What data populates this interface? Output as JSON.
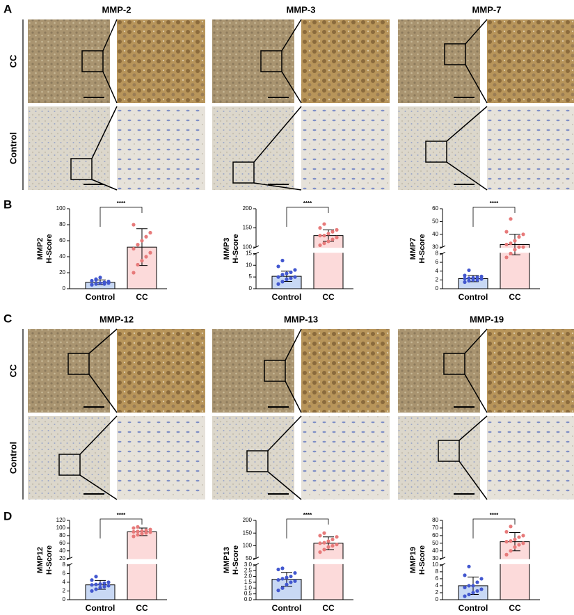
{
  "panels": [
    {
      "label": "A",
      "columns": [
        "MMP-2",
        "MMP-3",
        "MMP-7"
      ],
      "rows": [
        "CC",
        "Control"
      ]
    },
    {
      "label": "C",
      "columns": [
        "MMP-12",
        "MMP-13",
        "MMP-19"
      ],
      "rows": [
        "CC",
        "Control"
      ]
    }
  ],
  "chart_panel_labels": [
    "B",
    "D"
  ],
  "chart_data": [
    {
      "type": "bar",
      "ylabel": [
        "MMP2",
        "H-Score"
      ],
      "categories": [
        "Control",
        "CC"
      ],
      "significance": "****",
      "colors": [
        "#c8d8f4",
        "#fcdada"
      ],
      "point_colors": [
        "#4257cf",
        "#e77a7a"
      ],
      "values": [
        8,
        52
      ],
      "errors": [
        3,
        23
      ],
      "points": [
        [
          5,
          6,
          7,
          8,
          9,
          10,
          12,
          14,
          6,
          7,
          5,
          11
        ],
        [
          20,
          30,
          35,
          40,
          45,
          50,
          55,
          60,
          65,
          70,
          80,
          55
        ]
      ],
      "ylim": [
        0,
        100
      ],
      "yticks": [
        0,
        20,
        40,
        60,
        80,
        100
      ]
    },
    {
      "type": "bar",
      "ylabel": [
        "MMP3",
        "H-Score"
      ],
      "categories": [
        "Control",
        "CC"
      ],
      "significance": "****",
      "colors": [
        "#c8d8f4",
        "#fcdada"
      ],
      "point_colors": [
        "#4257cf",
        "#e77a7a"
      ],
      "values": [
        5.3,
        130
      ],
      "errors": [
        2.2,
        15
      ],
      "points": [
        [
          2,
          3,
          4,
          4.5,
          5,
          5,
          6,
          6.5,
          7,
          8,
          9.5,
          12
        ],
        [
          105,
          110,
          115,
          120,
          125,
          130,
          130,
          135,
          140,
          145,
          150,
          160
        ]
      ],
      "ylim_lower": [
        0,
        15
      ],
      "yticks_lower": [
        0,
        5,
        10,
        15
      ],
      "ylim_upper": [
        100,
        200
      ],
      "yticks_upper": [
        100,
        150,
        200
      ]
    },
    {
      "type": "bar",
      "ylabel": [
        "MMP7",
        "H-Score"
      ],
      "categories": [
        "Control",
        "CC"
      ],
      "significance": "****",
      "colors": [
        "#c8d8f4",
        "#fcdada"
      ],
      "point_colors": [
        "#4257cf",
        "#e77a7a"
      ],
      "values": [
        2.3,
        32
      ],
      "errors": [
        0.7,
        8
      ],
      "points": [
        [
          1.5,
          1.8,
          2,
          2,
          2.2,
          2.3,
          2.4,
          2.5,
          2.6,
          2.8,
          3,
          4.2
        ],
        [
          22,
          25,
          28,
          30,
          30,
          32,
          33,
          35,
          38,
          40,
          42,
          52
        ]
      ],
      "ylim_lower": [
        0,
        8
      ],
      "yticks_lower": [
        0,
        2,
        4,
        6,
        8
      ],
      "ylim_upper": [
        30,
        60
      ],
      "yticks_upper": [
        30,
        40,
        50,
        60
      ]
    },
    {
      "type": "bar",
      "ylabel": [
        "MMP12",
        "H-Score"
      ],
      "categories": [
        "Control",
        "CC"
      ],
      "significance": "****",
      "colors": [
        "#c8d8f4",
        "#fcdada"
      ],
      "point_colors": [
        "#4257cf",
        "#e77a7a"
      ],
      "values": [
        3.4,
        90
      ],
      "errors": [
        1,
        10
      ],
      "points": [
        [
          2,
          2.4,
          2.8,
          3,
          3.2,
          3.4,
          3.5,
          3.6,
          3.8,
          4,
          4.5,
          5.3
        ],
        [
          78,
          82,
          85,
          87,
          89,
          90,
          91,
          92,
          94,
          96,
          100,
          103
        ]
      ],
      "ylim_lower": [
        0,
        8
      ],
      "yticks_lower": [
        0,
        2,
        4,
        6,
        8
      ],
      "ylim_upper": [
        20,
        120
      ],
      "yticks_upper": [
        20,
        40,
        60,
        80,
        100,
        120
      ]
    },
    {
      "type": "bar",
      "ylabel": [
        "MMP13",
        "H-Score"
      ],
      "categories": [
        "Control",
        "CC"
      ],
      "significance": "****",
      "colors": [
        "#c8d8f4",
        "#fcdada"
      ],
      "point_colors": [
        "#4257cf",
        "#e77a7a"
      ],
      "values": [
        1.75,
        110
      ],
      "errors": [
        0.6,
        25
      ],
      "points": [
        [
          0.8,
          1.0,
          1.3,
          1.5,
          1.6,
          1.7,
          1.8,
          1.9,
          2.0,
          2.3,
          2.6,
          2.7
        ],
        [
          75,
          85,
          95,
          100,
          105,
          110,
          112,
          118,
          125,
          135,
          140,
          150
        ]
      ],
      "ylim_lower": [
        0,
        3
      ],
      "yticks_lower": [
        {
          "value": 0,
          "label": "0.0"
        },
        0.5,
        {
          "value": 1,
          "label": "1.0"
        },
        1.5,
        {
          "value": 2,
          "label": "2.0"
        },
        2.5,
        {
          "value": 3,
          "label": "3.0"
        }
      ],
      "ylim_upper": [
        50,
        200
      ],
      "yticks_upper": [
        50,
        100,
        150,
        200
      ]
    },
    {
      "type": "bar",
      "ylabel": [
        "MMP19",
        "H-Score"
      ],
      "categories": [
        "Control",
        "CC"
      ],
      "significance": "****",
      "colors": [
        "#c8d8f4",
        "#fcdada"
      ],
      "point_colors": [
        "#4257cf",
        "#e77a7a"
      ],
      "values": [
        4,
        52
      ],
      "errors": [
        2.5,
        12
      ],
      "points": [
        [
          1,
          1.5,
          2,
          2.5,
          3,
          3.5,
          4,
          4,
          5,
          6,
          7,
          9.5
        ],
        [
          35,
          40,
          45,
          48,
          50,
          52,
          53,
          55,
          58,
          60,
          65,
          72
        ]
      ],
      "ylim_lower": [
        0,
        10
      ],
      "yticks_lower": [
        0,
        2,
        4,
        6,
        8,
        10
      ],
      "ylim_upper": [
        30,
        80
      ],
      "yticks_upper": [
        30,
        40,
        50,
        60,
        70,
        80
      ]
    }
  ]
}
